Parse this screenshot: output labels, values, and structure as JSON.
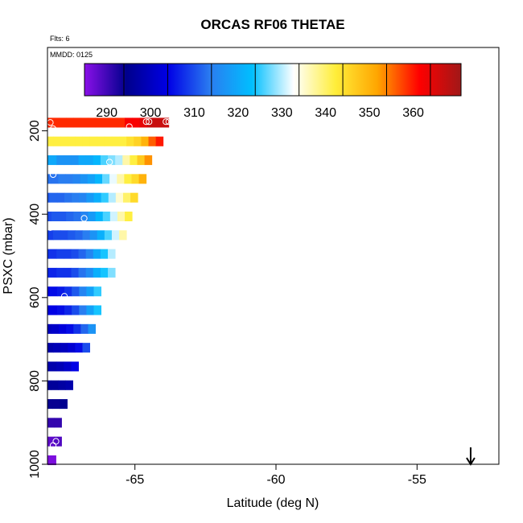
{
  "chart_data": {
    "type": "heatmap",
    "title": "ORCAS RF06 THETAE",
    "annotations": {
      "flights": "Flts: 6",
      "date": "MMDD: 0125"
    },
    "xlabel": "Latitude (deg N)",
    "ylabel": "PSXC (mbar)",
    "xlim": [
      -68.1,
      -52.1
    ],
    "ylim": [
      1000,
      0
    ],
    "x_ticks": [
      -65,
      -60,
      -55
    ],
    "x_tick_labels": [
      "-65",
      "-60",
      "-55"
    ],
    "y_ticks": [
      200,
      400,
      600,
      800,
      1000
    ],
    "y_tick_labels": [
      "200",
      "400",
      "600",
      "800",
      "1000"
    ],
    "colorbar": {
      "range": [
        281,
        367
      ],
      "ticks": [
        290,
        300,
        310,
        320,
        330,
        340,
        350,
        360
      ],
      "tick_labels": [
        "290",
        "300",
        "310",
        "320",
        "330",
        "340",
        "350",
        "360"
      ],
      "stops": [
        "#8a10e8",
        "#00008c",
        "#0000e6",
        "#2a7cf0",
        "#00bfff",
        "#ffffff",
        "#ffee3a",
        "#ffa500",
        "#ff0000",
        "#a01818"
      ]
    },
    "grid_p_step": 22.5,
    "grid_x_step": 0.26,
    "rows": [
      {
        "p": 180,
        "x_end": -63.8,
        "v": [
          355,
          355,
          355,
          355,
          355,
          355,
          355,
          355,
          355,
          355,
          355,
          355,
          355,
          355,
          355,
          355,
          358,
          358,
          360,
          363,
          363,
          363
        ]
      },
      {
        "p": 225,
        "x_end": -64.0,
        "v": [
          338,
          338,
          338,
          338,
          338,
          338,
          338,
          338,
          338,
          338,
          338,
          338,
          338,
          338,
          338,
          340,
          342,
          346,
          352,
          356
        ]
      },
      {
        "p": 270,
        "x_end": -64.4,
        "v": [
          316,
          316,
          316,
          316,
          316,
          316,
          313,
          313,
          313,
          316,
          316,
          318,
          322,
          324,
          326,
          333,
          338,
          343,
          349
        ]
      },
      {
        "p": 315,
        "x_end": -64.6,
        "v": [
          308,
          308,
          308,
          309,
          309,
          309,
          310,
          310,
          311,
          313,
          315,
          318,
          323,
          328,
          333,
          338,
          341,
          346
        ]
      },
      {
        "p": 360,
        "x_end": -64.9,
        "v": [
          307,
          307,
          307,
          307,
          308,
          308,
          309,
          310,
          311,
          314,
          317,
          321,
          326,
          331,
          336,
          341
        ]
      },
      {
        "p": 405,
        "x_end": -65.1,
        "v": [
          306,
          306,
          306,
          306,
          307,
          307,
          308,
          309,
          311,
          314,
          318,
          322,
          327,
          333,
          338
        ]
      },
      {
        "p": 450,
        "x_end": -65.3,
        "v": [
          305,
          305,
          305,
          305,
          306,
          306,
          307,
          308,
          310,
          313,
          317,
          322,
          327,
          333
        ]
      },
      {
        "p": 495,
        "x_end": -65.7,
        "v": [
          304,
          304,
          304,
          304,
          305,
          305,
          306,
          308,
          311,
          316,
          320,
          326
        ]
      },
      {
        "p": 540,
        "x_end": -65.7,
        "v": [
          303,
          303,
          303,
          303,
          304,
          304,
          306,
          309,
          312,
          317,
          320,
          324
        ]
      },
      {
        "p": 585,
        "x_end": -66.2,
        "v": [
          300,
          300,
          300,
          301,
          302,
          304,
          307,
          311,
          315,
          321
        ]
      },
      {
        "p": 630,
        "x_end": -66.2,
        "v": [
          298,
          298,
          299,
          300,
          301,
          303,
          306,
          310,
          315,
          320
        ]
      },
      {
        "p": 675,
        "x_end": -66.4,
        "v": [
          296,
          296,
          296,
          297,
          299,
          301,
          304,
          308,
          313
        ]
      },
      {
        "p": 720,
        "x_end": -66.6,
        "v": [
          294,
          294,
          294,
          295,
          296,
          298,
          301,
          306
        ]
      },
      {
        "p": 765,
        "x_end": -67.0,
        "v": [
          294,
          294,
          294,
          295,
          297,
          300
        ]
      },
      {
        "p": 810,
        "x_end": -67.2,
        "v": [
          292,
          292,
          292,
          293,
          294
        ]
      },
      {
        "p": 855,
        "x_end": -67.4,
        "v": [
          290,
          290,
          290,
          291
        ]
      },
      {
        "p": 900,
        "x_end": -67.6,
        "v": [
          287,
          287,
          287
        ]
      },
      {
        "p": 945,
        "x_end": -67.6,
        "v": [
          284,
          284,
          285
        ]
      },
      {
        "p": 990,
        "x_end": -67.8,
        "v": [
          282,
          282
        ]
      }
    ],
    "points": [
      {
        "x": -68.0,
        "y": 180
      },
      {
        "x": -67.9,
        "y": 195
      },
      {
        "x": -65.2,
        "y": 190
      },
      {
        "x": -64.6,
        "y": 178
      },
      {
        "x": -64.5,
        "y": 178
      },
      {
        "x": -63.9,
        "y": 178
      },
      {
        "x": -63.8,
        "y": 178
      },
      {
        "x": -65.9,
        "y": 275
      },
      {
        "x": -67.9,
        "y": 305
      },
      {
        "x": -66.8,
        "y": 410
      },
      {
        "x": -68.0,
        "y": 432
      },
      {
        "x": -68.0,
        "y": 520
      },
      {
        "x": -67.5,
        "y": 597
      },
      {
        "x": -67.9,
        "y": 745
      },
      {
        "x": -67.8,
        "y": 945
      },
      {
        "x": -67.9,
        "y": 955
      },
      {
        "x": -67.9,
        "y": 970
      }
    ],
    "arrow_marker": {
      "x": -53.1,
      "direction": "down"
    }
  }
}
